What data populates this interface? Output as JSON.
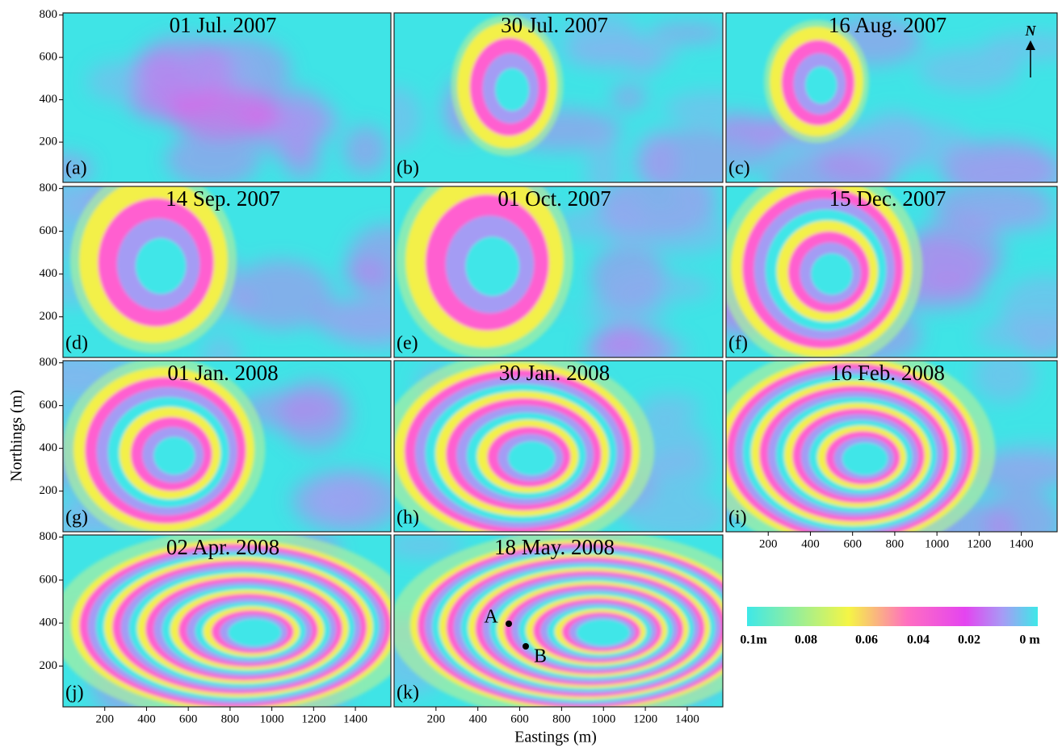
{
  "panels": [
    {
      "label": "(a)",
      "date": "01 Jul. 2007"
    },
    {
      "label": "(b)",
      "date": "30 Jul. 2007"
    },
    {
      "label": "(c)",
      "date": "16 Aug. 2007"
    },
    {
      "label": "(d)",
      "date": "14 Sep. 2007"
    },
    {
      "label": "(e)",
      "date": "01 Oct. 2007"
    },
    {
      "label": "(f)",
      "date": "15 Dec. 2007"
    },
    {
      "label": "(g)",
      "date": "01 Jan. 2008"
    },
    {
      "label": "(h)",
      "date": "30 Jan. 2008"
    },
    {
      "label": "(i)",
      "date": "16 Feb. 2008"
    },
    {
      "label": "(j)",
      "date": "02 Apr. 2008"
    },
    {
      "label": "(k)",
      "date": "18 May. 2008"
    }
  ],
  "axes": {
    "xlim": [
      0,
      1570
    ],
    "ylim": [
      10,
      810
    ],
    "xticks": [
      200,
      400,
      600,
      800,
      1000,
      1200,
      1400
    ],
    "yticks": [
      200,
      400,
      600,
      800
    ],
    "xlabel": "Eastings (m)",
    "ylabel": "Northings (m)"
  },
  "north": "N",
  "points": [
    "A",
    "B"
  ],
  "colorbar": {
    "labels": [
      "0.1m",
      "0.08",
      "0.06",
      "0.04",
      "0.02",
      "0 m"
    ]
  }
}
